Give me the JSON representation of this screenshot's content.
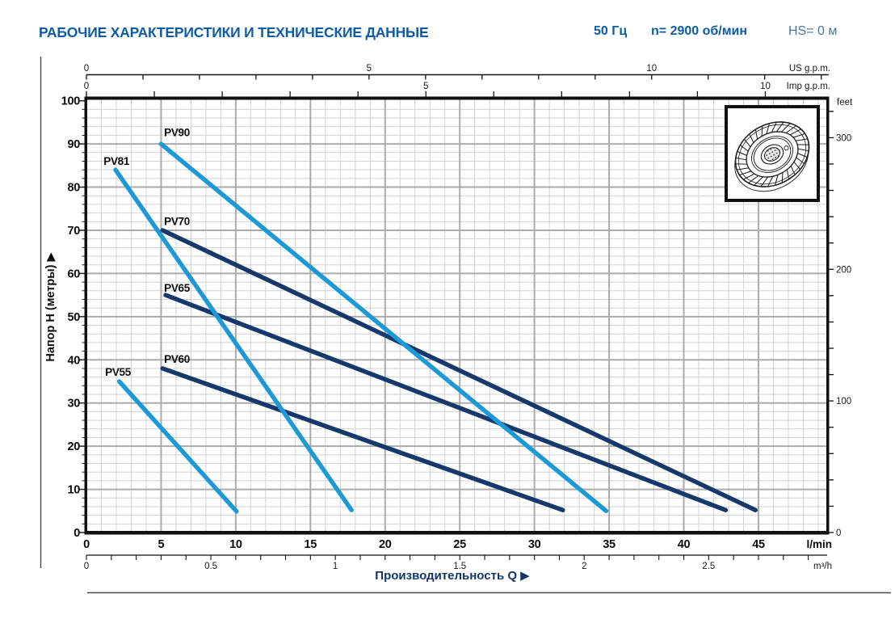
{
  "header": {
    "title": "РАБОЧИЕ ХАРАКТЕРИСТИКИ И ТЕХНИЧЕСКИЕ ДАННЫЕ",
    "frequency": "50 Гц",
    "speed": "n= 2900 об/мин",
    "suction": "HS= 0 м"
  },
  "colors": {
    "title_blue": "#0d5ca9",
    "light_series": "#1d99d6",
    "dark_series": "#16386b",
    "grid_minor": "#d2d2d2",
    "grid_major": "#ababab",
    "axis_black": "#111111",
    "rule_gray": "#4a4a4a"
  },
  "images": {
    "impeller": "pump-impeller-drawing"
  },
  "chart_data": {
    "type": "line",
    "xlabel": "Производительность Q",
    "arrow_glyph": "▶",
    "xlim_lmin": [
      0,
      49.6
    ],
    "ylim_m": [
      0,
      100.5
    ],
    "grid": {
      "minor_x_lmin": 1,
      "major_x_lmin": 5,
      "minor_y_m": 2,
      "major_y_m": 10,
      "grid_on": true
    },
    "x_axes": {
      "lmin": {
        "unit": "l/min",
        "labels": [
          0,
          5,
          10,
          15,
          20,
          25,
          30,
          35,
          40,
          45
        ]
      },
      "m3h": {
        "unit": "m³/h",
        "labels": [
          "0",
          "0.5",
          "1",
          "1.5",
          "2",
          "2.5"
        ]
      },
      "us_gpm": {
        "unit": "US g.p.m.",
        "labels": [
          0,
          5,
          10
        ]
      },
      "imp_gpm": {
        "unit": "Imp g.p.m.",
        "labels": [
          0,
          5,
          10
        ]
      }
    },
    "y_axes": {
      "meters": {
        "label": "Напор H (метры)",
        "labels": [
          0,
          10,
          20,
          30,
          40,
          50,
          60,
          70,
          80,
          90,
          100
        ]
      },
      "feet": {
        "unit": "feet",
        "labels": [
          0,
          100,
          200,
          300
        ]
      }
    },
    "series": [
      {
        "name": "PV90",
        "palette": "light",
        "points": [
          [
            5.0,
            90.0
          ],
          [
            34.8,
            5.0
          ]
        ],
        "label_pos": [
          5.2,
          91.8
        ]
      },
      {
        "name": "PV81",
        "palette": "light",
        "points": [
          [
            1.95,
            84.0
          ],
          [
            17.75,
            5.2
          ]
        ],
        "label_pos": [
          1.15,
          85.2
        ]
      },
      {
        "name": "PV70",
        "palette": "dark",
        "points": [
          [
            5.1,
            70.0
          ],
          [
            44.8,
            5.2
          ]
        ],
        "label_pos": [
          5.2,
          71.2
        ]
      },
      {
        "name": "PV65",
        "palette": "dark",
        "points": [
          [
            5.3,
            55.0
          ],
          [
            42.8,
            5.2
          ]
        ],
        "label_pos": [
          5.2,
          55.8
        ]
      },
      {
        "name": "PV60",
        "palette": "dark",
        "points": [
          [
            5.1,
            38.0
          ],
          [
            31.9,
            5.2
          ]
        ],
        "label_pos": [
          5.2,
          39.3
        ]
      },
      {
        "name": "PV55",
        "palette": "light",
        "points": [
          [
            2.2,
            35.0
          ],
          [
            10.05,
            4.9
          ]
        ],
        "label_pos": [
          1.25,
          36.3
        ]
      }
    ]
  }
}
